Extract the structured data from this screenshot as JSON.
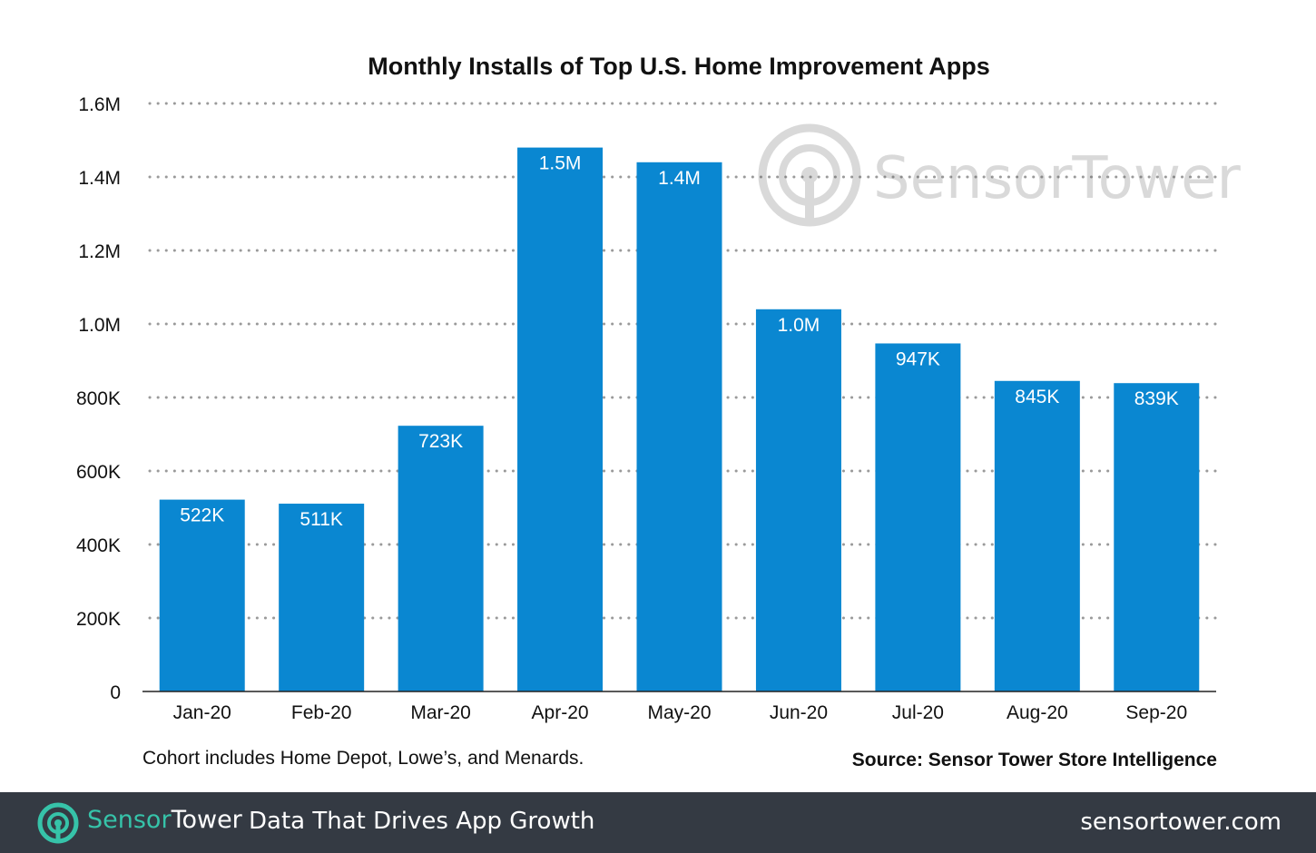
{
  "chart_data": {
    "type": "bar",
    "title": "Monthly Installs of Top U.S. Home Improvement Apps",
    "categories": [
      "Jan-20",
      "Feb-20",
      "Mar-20",
      "Apr-20",
      "May-20",
      "Jun-20",
      "Jul-20",
      "Aug-20",
      "Sep-20"
    ],
    "values": [
      522000,
      511000,
      723000,
      1480000,
      1440000,
      1040000,
      947000,
      845000,
      839000
    ],
    "data_labels": [
      "522K",
      "511K",
      "723K",
      "1.5M",
      "1.4M",
      "1.0M",
      "947K",
      "845K",
      "839K"
    ],
    "ylim": [
      0,
      1600000
    ],
    "yticks": [
      0,
      200000,
      400000,
      600000,
      800000,
      1000000,
      1200000,
      1400000,
      1600000
    ],
    "ytick_labels": [
      "0",
      "200K",
      "400K",
      "600K",
      "800K",
      "1.0M",
      "1.2M",
      "1.4M",
      "1.6M"
    ],
    "grid": "dotted horizontal",
    "bar_color": "#0a87d1"
  },
  "annotations": {
    "note": "Cohort includes Home Depot, Lowe’s, and Menards.",
    "source": "Source: Sensor Tower Store Intelligence"
  },
  "watermark": {
    "icon": "sensortower-logo-icon",
    "text": "SensorTower"
  },
  "footer": {
    "logo_part1": "Sensor",
    "logo_part2": "Tower",
    "tagline": "Data That Drives App Growth",
    "site": "sensortower.com",
    "background": "#343a43",
    "accent": "#36c3a9"
  }
}
